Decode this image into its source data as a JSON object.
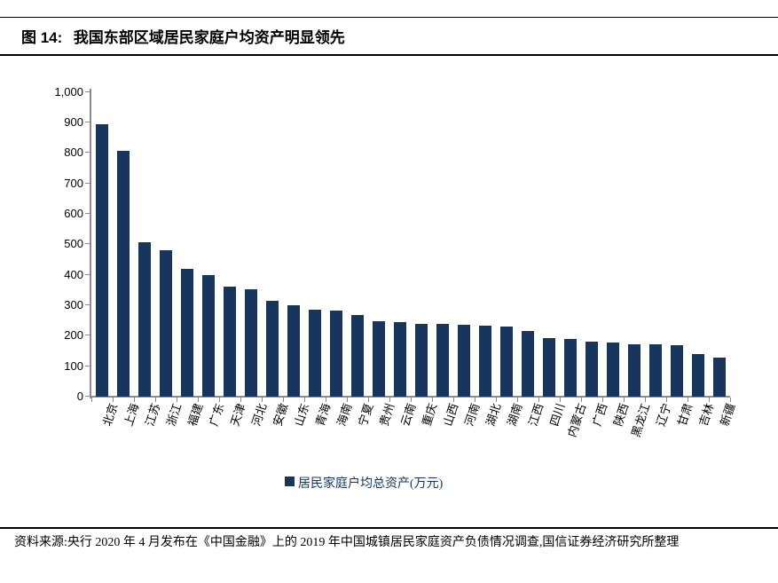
{
  "figure": {
    "label": "图 14:",
    "title": "我国东部区域居民家庭户均资产明显领先"
  },
  "chart_data": {
    "type": "bar",
    "title": "我国东部区域居民家庭户均资产明显领先",
    "categories": [
      "北京",
      "上海",
      "江苏",
      "浙江",
      "福建",
      "广东",
      "天津",
      "河北",
      "安徽",
      "山东",
      "青海",
      "海南",
      "宁夏",
      "贵州",
      "云南",
      "重庆",
      "山西",
      "河南",
      "湖北",
      "湖南",
      "江西",
      "四川",
      "内蒙古",
      "广西",
      "陕西",
      "黑龙江",
      "辽宁",
      "甘肃",
      "吉林",
      "新疆"
    ],
    "values": [
      893,
      807,
      506,
      480,
      418,
      400,
      362,
      352,
      314,
      301,
      285,
      282,
      268,
      248,
      244,
      240,
      238,
      235,
      234,
      230,
      216,
      192,
      190,
      181,
      179,
      172,
      171,
      169,
      140,
      127
    ],
    "series_name": "居民家庭户均总资产(万元)",
    "ylabel": "",
    "xlabel": "",
    "ylim": [
      0,
      1000
    ],
    "yticks": [
      0,
      100,
      200,
      300,
      400,
      500,
      600,
      700,
      800,
      900,
      1000
    ],
    "ytick_labels": [
      "0",
      "100",
      "200",
      "300",
      "400",
      "500",
      "600",
      "700",
      "800",
      "900",
      "1,000"
    ],
    "grid": false,
    "legend_position": "bottom-center",
    "bar_color": "#17365D",
    "axis_color": "#8a8a8a",
    "x_label_rotation_deg": -72
  },
  "legend": {
    "label": "居民家庭户均总资产(万元)"
  },
  "footer": {
    "source": "资料来源:央行 2020 年 4 月发布在《中国金融》上的 2019 年中国城镇居民家庭资产负债情况调查,国信证券经济研究所整理"
  }
}
